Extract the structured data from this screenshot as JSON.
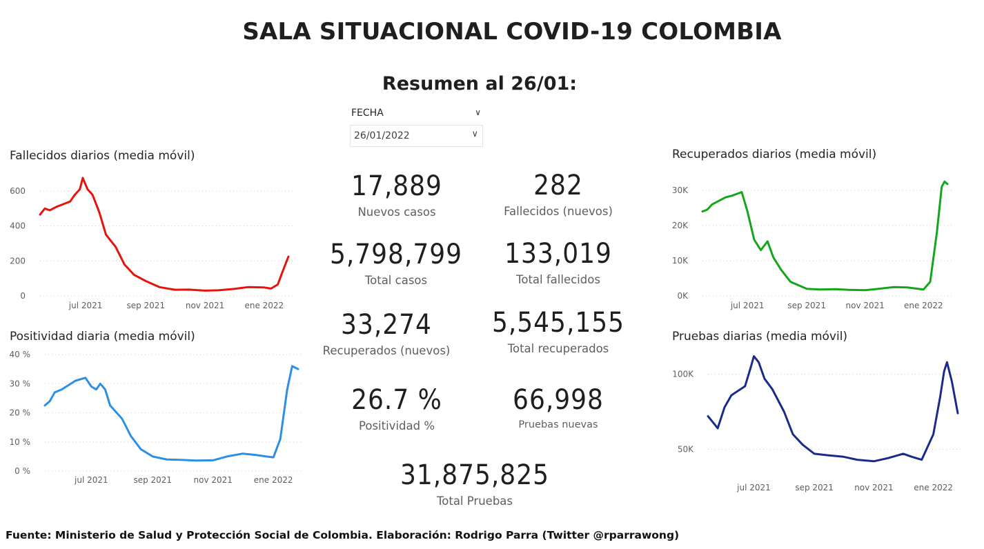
{
  "title": "SALA SITUACIONAL COVID-19 COLOMBIA",
  "subtitle": "Resumen al 26/01:",
  "slicer": {
    "header": "FECHA",
    "value": "26/01/2022"
  },
  "icons": {
    "slicer_header": "chevron-down-icon",
    "slicer_dropdown": "chevron-down-icon"
  },
  "colors": {
    "fallecidos": "#e8120c",
    "positividad": "#2b8fe4",
    "recuperados": "#13a61b",
    "pruebas": "#1a2a8a",
    "gridline": "#c8c8c8",
    "axis_text": "#605e5c"
  },
  "kpis": {
    "nuevos_casos": {
      "value": "17,889",
      "label": "Nuevos casos"
    },
    "fallecidos_nuevos": {
      "value": "282",
      "label": "Fallecidos (nuevos)"
    },
    "total_casos": {
      "value": "5,798,799",
      "label": "Total casos"
    },
    "total_fallecidos": {
      "value": "133,019",
      "label": "Total fallecidos"
    },
    "recuperados_nuevos": {
      "value": "33,274",
      "label": "Recuperados (nuevos)"
    },
    "total_recuperados": {
      "value": "5,545,155",
      "label": "Total recuperados"
    },
    "positividad": {
      "value": "26.7 %",
      "label": "Positividad %"
    },
    "pruebas_nuevas": {
      "value": "66,998",
      "label": "Pruebas nuevas"
    },
    "total_pruebas": {
      "value": "31,875,825",
      "label": "Total Pruebas"
    }
  },
  "footer": "Fuente: Ministerio de Salud y Protección Social de Colombia. Elaboración: Rodrigo Parra (Twitter @rparrawong)",
  "chart_data": [
    {
      "id": "fallecidos",
      "type": "line",
      "title": "Fallecidos diarios (media móvil)",
      "x_ticks": [
        "jul 2021",
        "sep 2021",
        "nov 2021",
        "ene 2022"
      ],
      "x_tick_dates": [
        "2021-07-01",
        "2021-09-01",
        "2021-11-01",
        "2022-01-01"
      ],
      "y_ticks": [
        "0",
        "200",
        "400",
        "600"
      ],
      "ylim": [
        0,
        600
      ],
      "grid": true,
      "series": [
        {
          "x": [
            "2021-05-15",
            "2021-05-20",
            "2021-05-25",
            "2021-06-01",
            "2021-06-08",
            "2021-06-15",
            "2021-06-20",
            "2021-06-25",
            "2021-06-28",
            "2021-07-03",
            "2021-07-08",
            "2021-07-15",
            "2021-07-22",
            "2021-08-01",
            "2021-08-10",
            "2021-08-20",
            "2021-09-01",
            "2021-09-15",
            "2021-10-01",
            "2021-10-15",
            "2021-11-01",
            "2021-11-15",
            "2021-12-01",
            "2021-12-15",
            "2022-01-01",
            "2022-01-08",
            "2022-01-15",
            "2022-01-20",
            "2022-01-26"
          ],
          "y": [
            465,
            500,
            490,
            510,
            525,
            540,
            580,
            610,
            675,
            610,
            580,
            480,
            350,
            280,
            180,
            120,
            85,
            50,
            35,
            36,
            30,
            32,
            40,
            50,
            48,
            42,
            65,
            140,
            225
          ]
        }
      ]
    },
    {
      "id": "positividad",
      "type": "line",
      "title": "Positividad diaria (media móvil)",
      "x_ticks": [
        "jul 2021",
        "sep 2021",
        "nov 2021",
        "ene 2022"
      ],
      "x_tick_dates": [
        "2021-07-01",
        "2021-09-01",
        "2021-11-01",
        "2022-01-01"
      ],
      "y_ticks": [
        "0 %",
        "10 %",
        "20 %",
        "30 %",
        "40 %"
      ],
      "ylim": [
        0,
        40
      ],
      "grid": true,
      "series": [
        {
          "x": [
            "2021-05-15",
            "2021-05-20",
            "2021-05-25",
            "2021-06-01",
            "2021-06-08",
            "2021-06-15",
            "2021-06-20",
            "2021-06-25",
            "2021-07-01",
            "2021-07-06",
            "2021-07-10",
            "2021-07-15",
            "2021-07-20",
            "2021-08-01",
            "2021-08-10",
            "2021-08-20",
            "2021-09-01",
            "2021-09-15",
            "2021-10-01",
            "2021-10-15",
            "2021-11-01",
            "2021-11-15",
            "2021-12-01",
            "2021-12-15",
            "2021-12-25",
            "2022-01-01",
            "2022-01-08",
            "2022-01-15",
            "2022-01-20",
            "2022-01-26"
          ],
          "y": [
            22.5,
            24,
            27,
            28,
            29.5,
            31,
            31.5,
            32,
            29,
            28,
            30,
            28,
            22.5,
            18,
            12,
            7.5,
            5,
            4,
            3.8,
            3.6,
            3.7,
            5,
            6,
            5.5,
            5,
            4.7,
            11,
            28,
            36,
            35
          ]
        }
      ]
    },
    {
      "id": "recuperados",
      "type": "line",
      "title": "Recuperados diarios (media móvil)",
      "x_ticks": [
        "jul 2021",
        "sep 2021",
        "nov 2021",
        "ene 2022"
      ],
      "x_tick_dates": [
        "2021-07-01",
        "2021-09-01",
        "2021-11-01",
        "2022-01-01"
      ],
      "y_ticks": [
        "0K",
        "10K",
        "20K",
        "30K"
      ],
      "ylim": [
        0,
        30000
      ],
      "grid": true,
      "series": [
        {
          "x": [
            "2021-05-15",
            "2021-05-20",
            "2021-05-25",
            "2021-06-01",
            "2021-06-08",
            "2021-06-15",
            "2021-06-20",
            "2021-06-25",
            "2021-07-01",
            "2021-07-08",
            "2021-07-15",
            "2021-07-22",
            "2021-07-28",
            "2021-08-05",
            "2021-08-15",
            "2021-09-01",
            "2021-09-15",
            "2021-10-01",
            "2021-10-15",
            "2021-11-01",
            "2021-11-15",
            "2021-12-01",
            "2021-12-15",
            "2022-01-01",
            "2022-01-08",
            "2022-01-15",
            "2022-01-20",
            "2022-01-23",
            "2022-01-26"
          ],
          "y": [
            24000,
            24500,
            26000,
            27000,
            28000,
            28500,
            29000,
            29500,
            24000,
            16000,
            13000,
            15500,
            11000,
            7500,
            4000,
            2000,
            1800,
            1900,
            1700,
            1600,
            2000,
            2500,
            2400,
            1800,
            4000,
            18000,
            31000,
            32500,
            31800
          ]
        }
      ]
    },
    {
      "id": "pruebas",
      "type": "line",
      "title": "Pruebas diarias (media móvil)",
      "x_ticks": [
        "jul 2021",
        "sep 2021",
        "nov 2021",
        "ene 2022"
      ],
      "x_tick_dates": [
        "2021-07-01",
        "2021-09-01",
        "2021-11-01",
        "2022-01-01"
      ],
      "y_ticks": [
        "50K",
        "100K"
      ],
      "ylim": [
        35000,
        115000
      ],
      "grid": true,
      "series": [
        {
          "x": [
            "2021-05-15",
            "2021-05-20",
            "2021-05-25",
            "2021-06-01",
            "2021-06-08",
            "2021-06-15",
            "2021-06-22",
            "2021-06-28",
            "2021-07-01",
            "2021-07-06",
            "2021-07-12",
            "2021-07-20",
            "2021-08-01",
            "2021-08-10",
            "2021-08-20",
            "2021-09-01",
            "2021-09-15",
            "2021-10-01",
            "2021-10-15",
            "2021-11-01",
            "2021-11-15",
            "2021-12-01",
            "2021-12-10",
            "2021-12-20",
            "2022-01-01",
            "2022-01-08",
            "2022-01-12",
            "2022-01-15",
            "2022-01-20",
            "2022-01-26"
          ],
          "y": [
            72000,
            68000,
            64000,
            78000,
            86000,
            89000,
            92000,
            105000,
            112000,
            108000,
            97000,
            90000,
            75000,
            60000,
            53000,
            47000,
            46000,
            45000,
            43000,
            42000,
            44000,
            47000,
            45000,
            43000,
            60000,
            85000,
            102000,
            108000,
            95000,
            74000
          ]
        }
      ]
    }
  ]
}
